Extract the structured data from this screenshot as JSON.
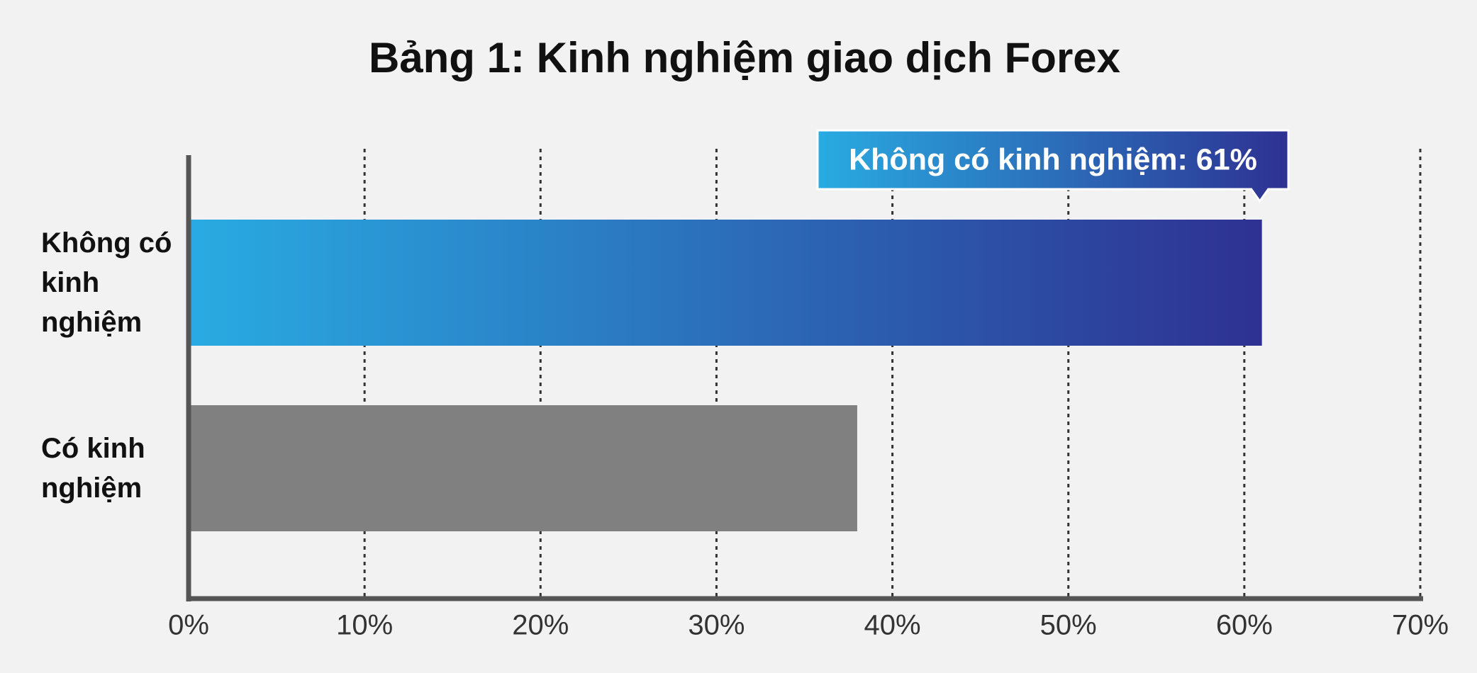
{
  "chart_data": {
    "type": "barh",
    "title": "Bảng 1: Kinh nghiệm giao dịch Forex",
    "categories": [
      "Không có kinh nghiệm",
      "Có kinh nghiệm"
    ],
    "values": [
      61,
      38
    ],
    "colors": [
      [
        "#29abe2",
        "#2e3192"
      ],
      "#808080"
    ],
    "annotation": "Không có kinh nghiệm: 61%",
    "xlim": [
      0,
      70
    ],
    "xticks": [
      {
        "value": 0,
        "label": "0%"
      },
      {
        "value": 10,
        "label": "10%"
      },
      {
        "value": 20,
        "label": "20%"
      },
      {
        "value": 30,
        "label": "30%"
      },
      {
        "value": 40,
        "label": "40%"
      },
      {
        "value": 50,
        "label": "50%"
      },
      {
        "value": 60,
        "label": "60%"
      },
      {
        "value": 70,
        "label": "70%"
      }
    ],
    "grid": true
  }
}
